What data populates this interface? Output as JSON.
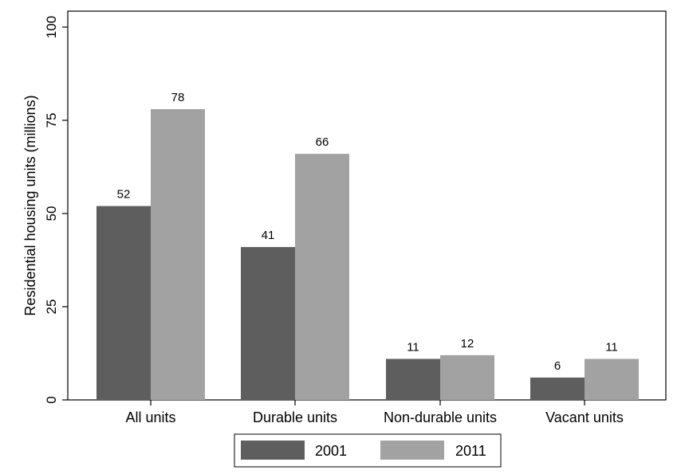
{
  "chart_data": {
    "type": "bar",
    "categories": [
      "All units",
      "Durable units",
      "Non-durable units",
      "Vacant units"
    ],
    "series": [
      {
        "name": "2001",
        "values": [
          52,
          41,
          11,
          6
        ],
        "color": "#5e5e5e"
      },
      {
        "name": "2011",
        "values": [
          78,
          66,
          12,
          11
        ],
        "color": "#a2a2a2"
      }
    ],
    "data_labels": [
      [
        "52",
        "41",
        "11",
        "6"
      ],
      [
        "78",
        "66",
        "12",
        "11"
      ]
    ],
    "ylabel": "Residential housing units (millions)",
    "ylim": [
      0,
      100
    ],
    "yticks": [
      0,
      25,
      50,
      75,
      100
    ],
    "grid": false,
    "legend_position": "bottom"
  }
}
